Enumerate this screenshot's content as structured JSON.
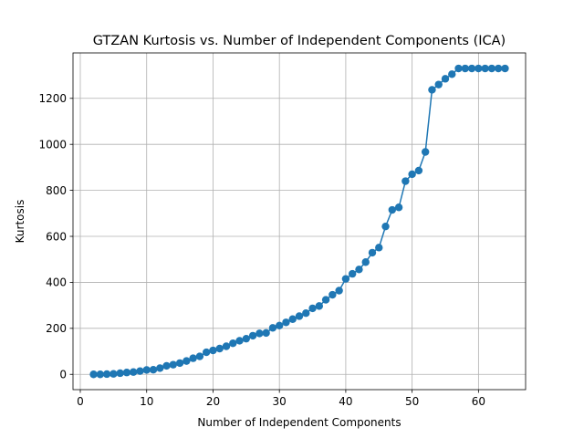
{
  "chart_data": {
    "type": "line",
    "title": "GTZAN Kurtosis vs. Number of Independent Components (ICA)",
    "xlabel": "Number of Independent Components",
    "ylabel": "Kurtosis",
    "xlim": [
      -1.1,
      67.1
    ],
    "ylim": [
      -66.5,
      1397.5
    ],
    "xticks": [
      0,
      10,
      20,
      30,
      40,
      50,
      60
    ],
    "yticks": [
      0,
      200,
      400,
      600,
      800,
      1000,
      1200
    ],
    "grid": true,
    "series": [
      {
        "color": "#1f77b4",
        "marker": "circle",
        "x": [
          2,
          3,
          4,
          5,
          6,
          7,
          8,
          9,
          10,
          11,
          12,
          13,
          14,
          15,
          16,
          17,
          18,
          19,
          20,
          21,
          22,
          23,
          24,
          25,
          26,
          27,
          28,
          29,
          30,
          31,
          32,
          33,
          34,
          35,
          36,
          37,
          38,
          39,
          40,
          41,
          42,
          43,
          44,
          45,
          46,
          47,
          48,
          49,
          50,
          51,
          52,
          53,
          54,
          55,
          56,
          57,
          58,
          59,
          60,
          61,
          62,
          63,
          64
        ],
        "values": [
          0,
          0,
          1,
          2,
          5,
          8,
          10,
          14,
          19,
          20,
          27,
          37,
          42,
          49,
          58,
          70,
          78,
          96,
          104,
          112,
          122,
          135,
          146,
          155,
          168,
          178,
          180,
          202,
          212,
          226,
          240,
          253,
          266,
          287,
          297,
          324,
          346,
          364,
          415,
          437,
          456,
          488,
          529,
          551,
          643,
          715,
          726,
          840,
          870,
          886,
          967,
          1237,
          1260,
          1285,
          1305,
          1330,
          1330,
          1330,
          1330,
          1330,
          1330,
          1330,
          1330
        ]
      }
    ]
  }
}
